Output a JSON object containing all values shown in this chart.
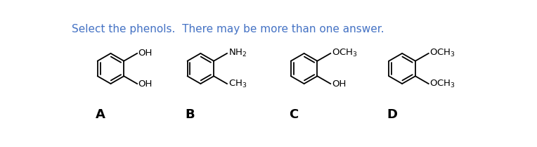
{
  "title": "Select the phenols.  There may be more than one answer.",
  "title_color": "#4472C4",
  "title_fontsize": 11,
  "background_color": "#ffffff",
  "molecules": [
    {
      "label": "A",
      "sub_top": "OH",
      "sub_bot": "OH"
    },
    {
      "label": "B",
      "sub_top": "NH$_2$",
      "sub_bot": "CH$_3$"
    },
    {
      "label": "C",
      "sub_top": "OCH$_3$",
      "sub_bot": "OH"
    },
    {
      "label": "D",
      "sub_top": "OCH$_3$",
      "sub_bot": "OCH$_3$"
    }
  ],
  "ring_color": "#000000",
  "text_color": "#000000",
  "label_fontsize": 13,
  "substituent_fontsize": 9.5,
  "lw": 1.3
}
